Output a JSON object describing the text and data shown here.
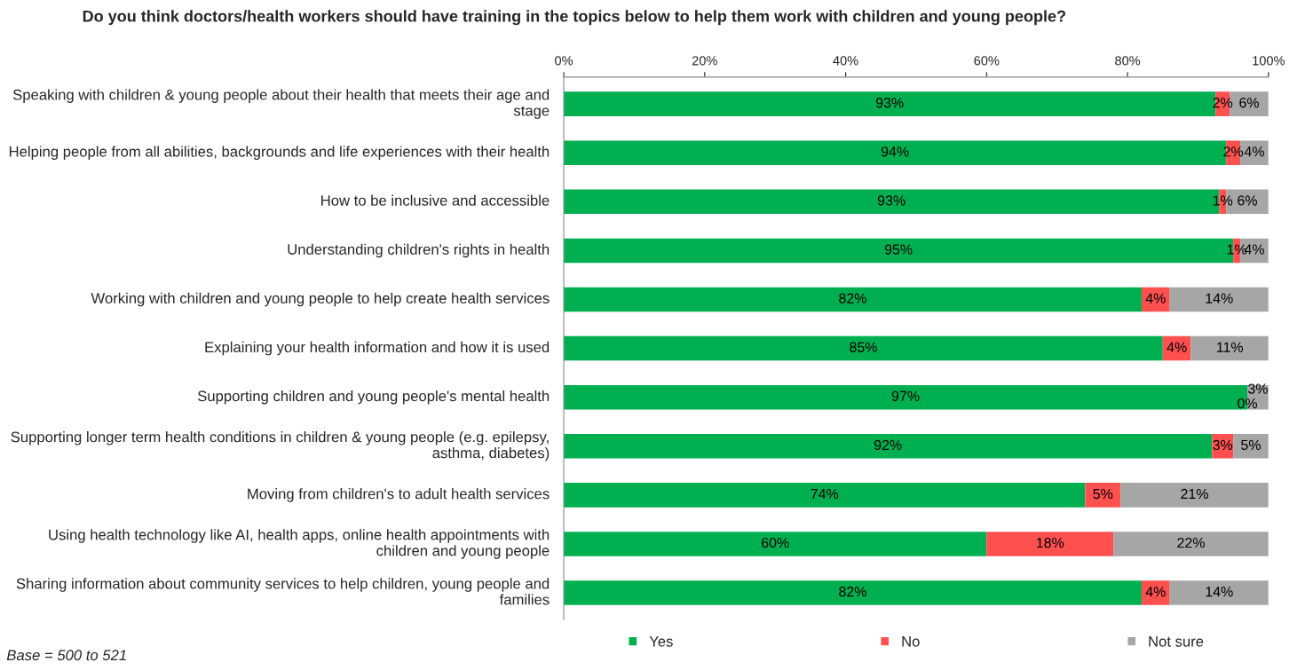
{
  "chart_data": {
    "type": "bar",
    "orientation": "horizontal",
    "stacked": true,
    "title": "Do you think doctors/health workers should have training in the topics below to help them work with children and young people?",
    "categories": [
      "Speaking with children & young people about their health that meets their age and stage",
      "Helping people from all abilities, backgrounds and life experiences with their health",
      "How to be inclusive and accessible",
      "Understanding children's rights in health",
      "Working with children and young people to help create health services",
      "Explaining your health information and how it is used",
      "Supporting children and young people's mental health",
      "Supporting longer term health conditions in children & young people (e.g. epilepsy, asthma, diabetes)",
      "Moving from children's to adult health services",
      "Using health technology like AI, health apps, online health appointments with children and young people",
      "Sharing information about community services to help children, young people and families"
    ],
    "series": [
      {
        "name": "Yes",
        "color": "#00b050",
        "values": [
          92.5,
          94,
          93,
          95,
          82,
          85,
          97,
          92,
          74,
          60,
          82
        ],
        "value_labels": [
          "93%",
          "94%",
          "93%",
          "95%",
          "82%",
          "85%",
          "97%",
          "92%",
          "74%",
          "60%",
          "82%"
        ]
      },
      {
        "name": "No",
        "color": "#ff5050",
        "values": [
          2,
          2,
          1,
          1,
          4,
          4,
          0,
          3,
          5,
          18,
          4
        ],
        "value_labels": [
          "2%",
          "2%",
          "1%",
          "1%",
          "4%",
          "4%",
          "0%",
          "3%",
          "5%",
          "18%",
          "4%"
        ]
      },
      {
        "name": "Not sure",
        "color": "#a6a6a6",
        "values": [
          5.5,
          4,
          6,
          4,
          14,
          11,
          3,
          5,
          21,
          22,
          14
        ],
        "value_labels": [
          "6%",
          "4%",
          "6%",
          "4%",
          "14%",
          "11%",
          "3%",
          "5%",
          "21%",
          "22%",
          "14%"
        ]
      }
    ],
    "xlim": [
      0,
      100
    ],
    "xticks": [
      {
        "value": 0,
        "label": "0%"
      },
      {
        "value": 20,
        "label": "20%"
      },
      {
        "value": 40,
        "label": "40%"
      },
      {
        "value": 60,
        "label": "60%"
      },
      {
        "value": 80,
        "label": "80%"
      },
      {
        "value": 100,
        "label": "100%"
      }
    ],
    "legend": "bottom",
    "grid": false,
    "annotations": [
      "Base = 500 to 521"
    ]
  }
}
